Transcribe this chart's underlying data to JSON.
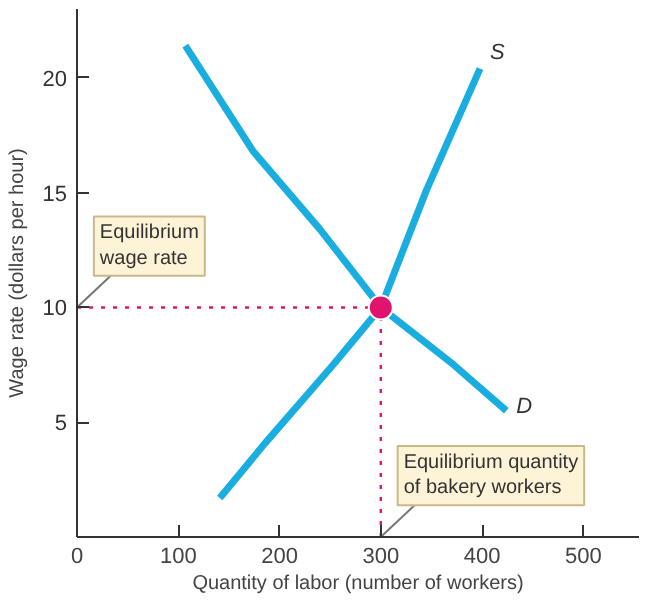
{
  "chart_data": {
    "type": "line",
    "xlabel": "Quantity of labor (number of workers)",
    "ylabel": "Wage rate (dollars per hour)",
    "xlim": [
      0,
      555
    ],
    "ylim": [
      0,
      23
    ],
    "xticks": [
      0,
      100,
      200,
      300,
      400,
      500
    ],
    "yticks": [
      {
        "value": 0,
        "label": null
      },
      5,
      10,
      15,
      20
    ],
    "grid": false,
    "legend": false,
    "marker": "none",
    "line_style": "solid",
    "series": [
      {
        "name": "S",
        "color": "#1aaee0",
        "x": [
          141,
          186,
          253,
          300,
          345,
          398
        ],
        "values": [
          1.7,
          4.1,
          7.5,
          10,
          15.1,
          20.4
        ]
      },
      {
        "name": "D",
        "color": "#1aaee0",
        "x": [
          107,
          174,
          240,
          300,
          372,
          424
        ],
        "values": [
          21.4,
          16.8,
          13.4,
          10,
          7.5,
          5.5
        ]
      },
      {
        "type": "scatter",
        "marker": "circle",
        "color": "#e0136f",
        "x": [
          300
        ],
        "values": [
          10
        ]
      }
    ],
    "ref_lines": [
      {
        "axis": "y",
        "value": 10,
        "color": "#e0136f",
        "line_style": "dotted"
      },
      {
        "axis": "x",
        "value": 300,
        "color": "#e0136f",
        "line_style": "dotted"
      }
    ],
    "annotations": [
      {
        "text": "Equilibrium\nwage rate",
        "x": 0,
        "y": 10
      },
      {
        "text": "Equilibrium quantity\nof bakery workers",
        "x": 300,
        "y": 0
      }
    ]
  }
}
